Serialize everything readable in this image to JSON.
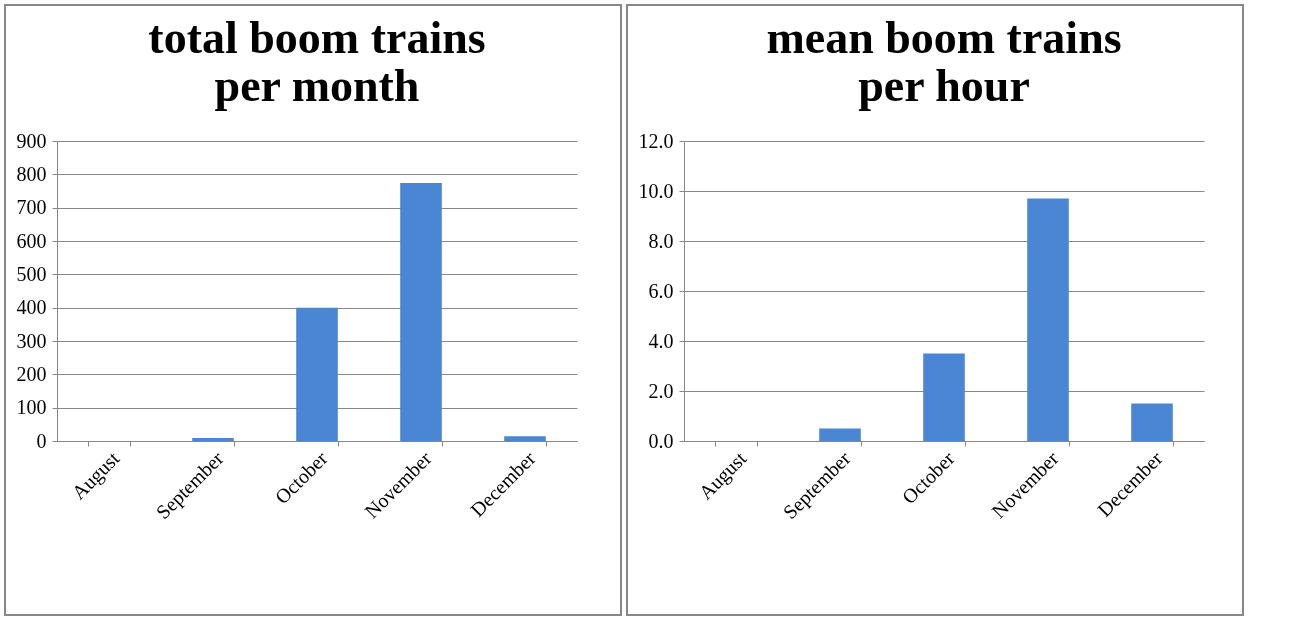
{
  "chart_data": [
    {
      "type": "bar",
      "title": "total boom trains\nper month",
      "categories": [
        "August",
        "September",
        "October",
        "November",
        "December"
      ],
      "values": [
        0,
        9,
        400,
        774,
        14
      ],
      "color": "#4a86d4",
      "ylim": [
        0,
        900
      ],
      "yticks": [
        0,
        100,
        200,
        300,
        400,
        500,
        600,
        700,
        800,
        900
      ],
      "grid": "y"
    },
    {
      "type": "bar",
      "title": "mean boom trains\nper hour",
      "categories": [
        "August",
        "September",
        "October",
        "November",
        "December"
      ],
      "values": [
        0,
        0.5,
        3.5,
        9.7,
        1.5
      ],
      "color": "#4a86d4",
      "ylim": [
        0,
        12
      ],
      "yticks": [
        {
          "value": 0,
          "label": "0.0"
        },
        {
          "value": 2,
          "label": "2.0"
        },
        {
          "value": 4,
          "label": "4.0"
        },
        {
          "value": 6,
          "label": "6.0"
        },
        {
          "value": 8,
          "label": "8.0"
        },
        {
          "value": 10,
          "label": "10.0"
        },
        {
          "value": 12,
          "label": "12.0"
        }
      ],
      "grid": "y"
    }
  ]
}
